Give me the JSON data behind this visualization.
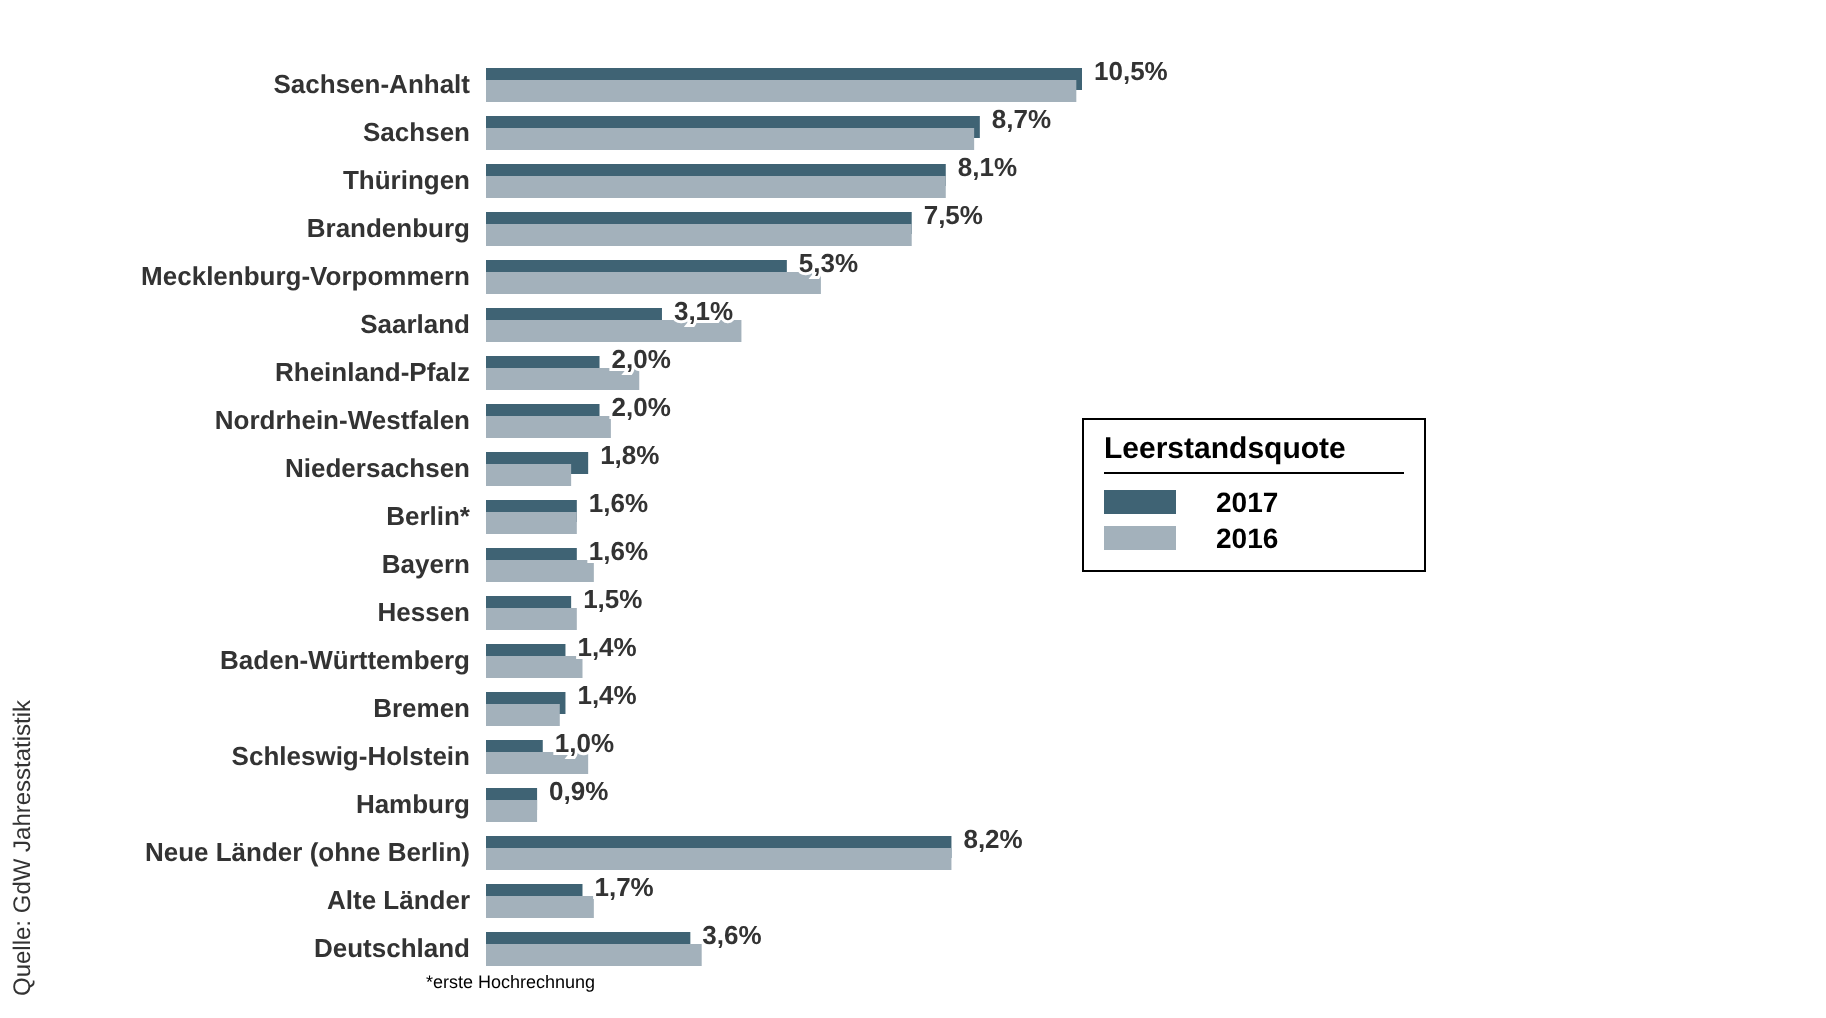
{
  "chart_data": {
    "type": "bar",
    "orientation": "horizontal",
    "categories": [
      "Sachsen-Anhalt",
      "Sachsen",
      "Thüringen",
      "Brandenburg",
      "Mecklenburg-Vorpommern",
      "Saarland",
      "Rheinland-Pfalz",
      "Nordrhein-Westfalen",
      "Niedersachsen",
      "Berlin*",
      "Bayern",
      "Hessen",
      "Baden-Württemberg",
      "Bremen",
      "Schleswig-Holstein",
      "Hamburg",
      "Neue Länder (ohne Berlin)",
      "Alte Länder",
      "Deutschland"
    ],
    "series": [
      {
        "name": "2017",
        "color": "#3f6374",
        "values": [
          10.5,
          8.7,
          8.1,
          7.5,
          5.3,
          3.1,
          2.0,
          2.0,
          1.8,
          1.6,
          1.6,
          1.5,
          1.4,
          1.4,
          1.0,
          0.9,
          8.2,
          1.7,
          3.6
        ],
        "value_labels": [
          "10,5%",
          "8,7%",
          "8,1%",
          "7,5%",
          "5,3%",
          "3,1%",
          "2,0%",
          "2,0%",
          "1,8%",
          "1,6%",
          "1,6%",
          "1,5%",
          "1,4%",
          "1,4%",
          "1,0%",
          "0,9%",
          "8,2%",
          "1,7%",
          "3,6%"
        ]
      },
      {
        "name": "2016",
        "color": "#a3b1bb",
        "values": [
          10.4,
          8.6,
          8.1,
          7.5,
          5.9,
          4.5,
          2.7,
          2.2,
          1.5,
          1.6,
          1.9,
          1.6,
          1.7,
          1.3,
          1.8,
          0.9,
          8.2,
          1.9,
          3.8
        ]
      }
    ],
    "legend": "right",
    "legend_title": "Leerstandsquote",
    "grid": false,
    "annotations": [
      "*erste Hochrechnung",
      "Quelle: GdW Jahresstatistik"
    ]
  }
}
